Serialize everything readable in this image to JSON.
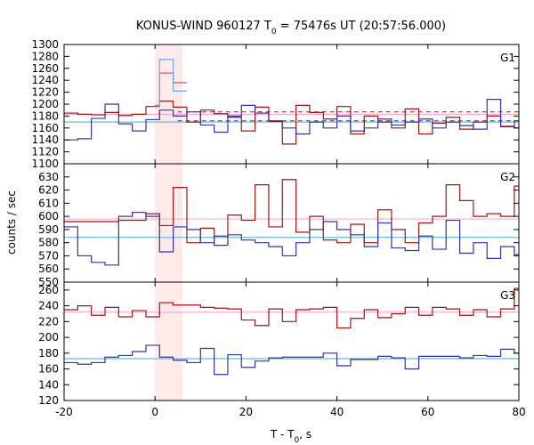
{
  "chart_data": {
    "type": "line",
    "title_main": "KONUS-WIND 960127 T",
    "title_sub": "0",
    "title_rest": " = 75476s UT (20:57:56.000)",
    "xlabel_main": "T - T",
    "xlabel_sub": "0",
    "xlabel_rest": ", s",
    "ylabel": "counts / sec",
    "xlim": [
      -20,
      80
    ],
    "x_ticks": [
      -20,
      0,
      20,
      40,
      60,
      80
    ],
    "x_tick_labels": [
      "-20",
      "0",
      "20",
      "40",
      "60",
      "80"
    ],
    "highlight_interval": [
      0,
      6
    ],
    "panels": [
      {
        "label": "G1",
        "ylim": [
          1100,
          1300
        ],
        "y_ticks": [
          1100,
          1120,
          1140,
          1160,
          1180,
          1200,
          1220,
          1240,
          1260,
          1280,
          1300
        ],
        "y_tick_labels": [
          "1100",
          "1120",
          "1140",
          "1160",
          "1180",
          "1200",
          "1220",
          "1240",
          "1260",
          "1280",
          "1300"
        ],
        "background_levels": [
          {
            "series": "red",
            "value": 1183
          },
          {
            "series": "blue",
            "value": 1170
          }
        ],
        "guide_lines": [
          {
            "series": "red",
            "value": 1187,
            "x_start": 5
          },
          {
            "series": "blue",
            "value": 1172,
            "x_start": 5
          }
        ],
        "series": [
          {
            "color": "red",
            "step_edges": [
              -20,
              -17,
              -14,
              -11,
              -8,
              -5,
              -2,
              1,
              4,
              7,
              10,
              13,
              16,
              19,
              22,
              25,
              28,
              31,
              34,
              37,
              40,
              43,
              46,
              49,
              52,
              55,
              58,
              61,
              64,
              67,
              70,
              73,
              76,
              79,
              80
            ],
            "values": [
              1185,
              1183,
              1182,
              1186,
              1181,
              1183,
              1196,
              1205,
              1195,
              1170,
              1190,
              1184,
              1178,
              1155,
              1195,
              1171,
              1133,
              1198,
              1186,
              1175,
              1196,
              1150,
              1180,
              1170,
              1160,
              1192,
              1150,
              1168,
              1178,
              1158,
              1170,
              1180,
              1162,
              1160
            ]
          },
          {
            "color": "blue",
            "step_edges": [
              -20,
              -17,
              -14,
              -11,
              -8,
              -5,
              -2,
              1,
              4,
              7,
              10,
              13,
              16,
              19,
              22,
              25,
              28,
              31,
              34,
              37,
              40,
              43,
              46,
              49,
              52,
              55,
              58,
              61,
              64,
              67,
              70,
              73,
              76,
              79,
              80
            ],
            "values": [
              1140,
              1142,
              1176,
              1200,
              1167,
              1155,
              1174,
              1190,
              1180,
              1187,
              1165,
              1153,
              1180,
              1198,
              1185,
              1172,
              1160,
              1150,
              1170,
              1160,
              1180,
              1155,
              1160,
              1175,
              1165,
              1170,
              1175,
              1160,
              1170,
              1164,
              1158,
              1208,
              1163,
              1172
            ]
          },
          {
            "color": "pink",
            "step_edges": [
              0,
              1,
              4,
              7
            ],
            "values": [
              1198,
              1252,
              1236
            ]
          },
          {
            "color": "lightblue",
            "step_edges": [
              0,
              1,
              4,
              7
            ],
            "values": [
              1197,
              1275,
              1222
            ]
          }
        ]
      },
      {
        "label": "G2",
        "ylim": [
          550,
          640
        ],
        "y_ticks": [
          550,
          560,
          570,
          580,
          590,
          600,
          610,
          620,
          630
        ],
        "y_tick_labels": [
          "550",
          "560",
          "570",
          "580",
          "590",
          "600",
          "610",
          "620",
          "630"
        ],
        "background_levels": [
          {
            "series": "red",
            "value": 598
          },
          {
            "series": "blue",
            "value": 584
          }
        ],
        "guide_lines": [],
        "series": [
          {
            "color": "red",
            "step_edges": [
              -20,
              -17,
              -14,
              -11,
              -8,
              -5,
              -2,
              1,
              4,
              7,
              10,
              13,
              16,
              19,
              22,
              25,
              28,
              31,
              34,
              37,
              40,
              43,
              46,
              49,
              52,
              55,
              58,
              61,
              64,
              67,
              70,
              73,
              76,
              79,
              80
            ],
            "values": [
              596,
              596,
              596,
              596,
              597,
              597,
              602,
              593,
              622,
              580,
              591,
              578,
              601,
              597,
              624,
              592,
              628,
              588,
              600,
              582,
              580,
              594,
              580,
              605,
              590,
              580,
              595,
              600,
              624,
              612,
              600,
              602,
              600,
              623
            ]
          },
          {
            "color": "blue",
            "step_edges": [
              -20,
              -17,
              -14,
              -11,
              -8,
              -5,
              -2,
              1,
              4,
              7,
              10,
              13,
              16,
              19,
              22,
              25,
              28,
              31,
              34,
              37,
              40,
              43,
              46,
              49,
              52,
              55,
              58,
              61,
              64,
              67,
              70,
              73,
              76,
              79,
              80
            ],
            "values": [
              592,
              570,
              565,
              563,
              600,
              603,
              600,
              573,
              592,
              590,
              580,
              585,
              586,
              582,
              580,
              577,
              570,
              580,
              590,
              596,
              590,
              586,
              577,
              595,
              576,
              574,
              585,
              575,
              597,
              572,
              580,
              568,
              577,
              571
            ]
          }
        ]
      },
      {
        "label": "G3",
        "ylim": [
          120,
          270
        ],
        "y_ticks": [
          120,
          140,
          160,
          180,
          200,
          220,
          240,
          260
        ],
        "y_tick_labels": [
          "120",
          "140",
          "160",
          "180",
          "200",
          "220",
          "240",
          "260"
        ],
        "background_levels": [
          {
            "series": "red",
            "value": 232
          },
          {
            "series": "blue",
            "value": 173
          }
        ],
        "guide_lines": [],
        "series": [
          {
            "color": "red",
            "step_edges": [
              -20,
              -17,
              -14,
              -11,
              -8,
              -5,
              -2,
              1,
              4,
              7,
              10,
              13,
              16,
              19,
              22,
              25,
              28,
              31,
              34,
              37,
              40,
              43,
              46,
              49,
              52,
              55,
              58,
              61,
              64,
              67,
              70,
              73,
              76,
              79,
              80
            ],
            "values": [
              235,
              240,
              228,
              238,
              226,
              234,
              226,
              244,
              241,
              241,
              238,
              237,
              236,
              222,
              215,
              236,
              220,
              235,
              236,
              238,
              212,
              224,
              235,
              225,
              230,
              238,
              228,
              238,
              236,
              228,
              235,
              226,
              236,
              262
            ]
          },
          {
            "color": "blue",
            "step_edges": [
              -20,
              -17,
              -14,
              -11,
              -8,
              -5,
              -2,
              1,
              4,
              7,
              10,
              13,
              16,
              19,
              22,
              25,
              28,
              31,
              34,
              37,
              40,
              43,
              46,
              49,
              52,
              55,
              58,
              61,
              64,
              67,
              70,
              73,
              76,
              79,
              80
            ],
            "values": [
              168,
              166,
              168,
              175,
              177,
              182,
              190,
              175,
              171,
              168,
              186,
              153,
              178,
              162,
              170,
              174,
              175,
              175,
              175,
              180,
              164,
              172,
              172,
              176,
              174,
              160,
              176,
              176,
              176,
              174,
              177,
              176,
              185,
              180
            ]
          }
        ]
      }
    ],
    "colors": {
      "red": "#aa1111",
      "blue": "#3333aa",
      "pink": "#dd5566",
      "lightblue": "#66aaff",
      "red_bg": "#ffaacc",
      "blue_bg": "#66bbdd",
      "highlight": "#ffeaea"
    }
  }
}
